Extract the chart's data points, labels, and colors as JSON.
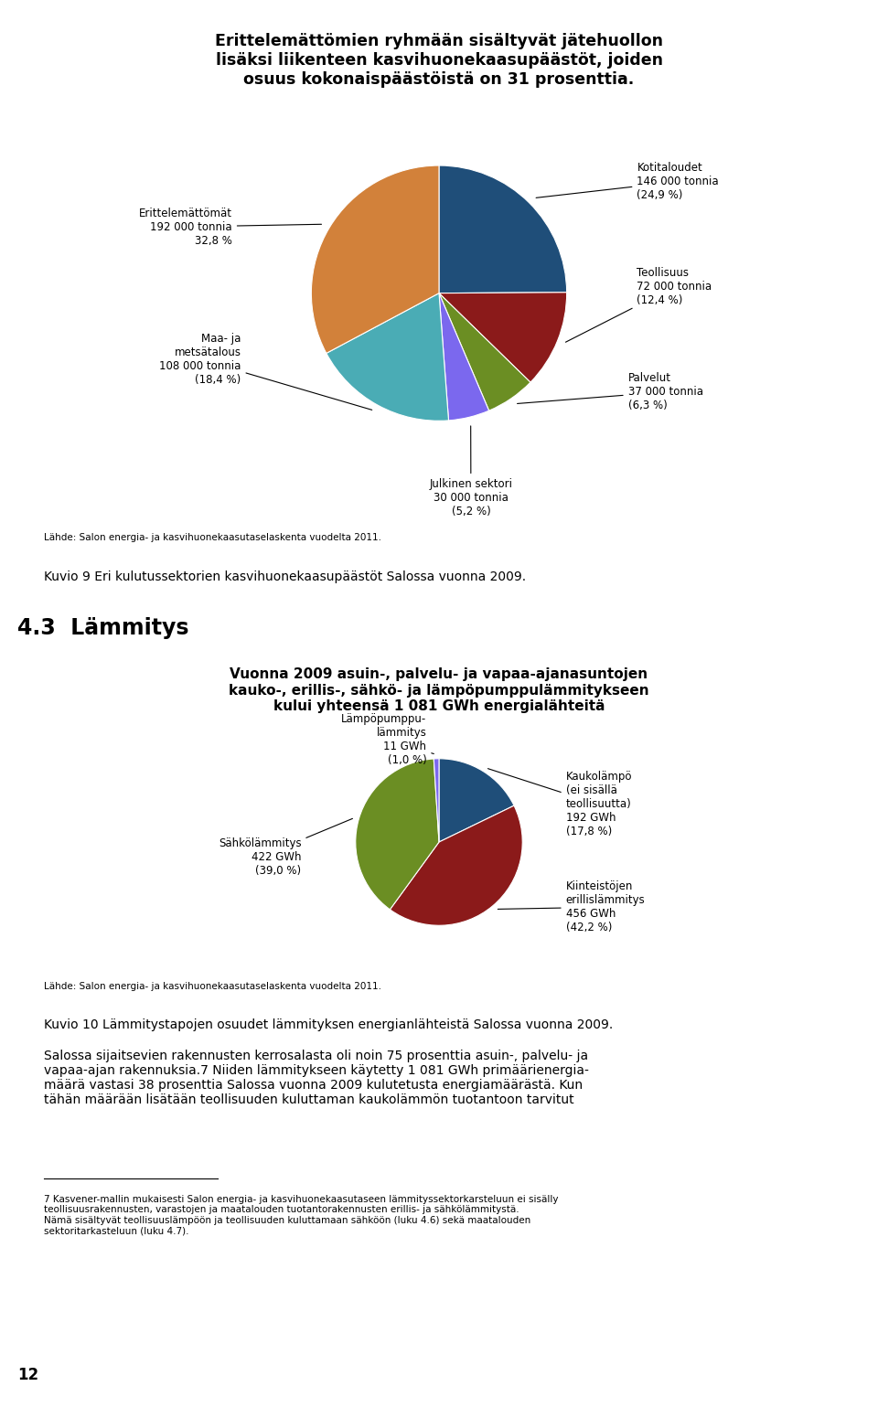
{
  "title1": "Erittelemättömien ryhmään sisältyvät jätehuollon\nlisäksi liikenteen kasvihuonekaasupäästöt, joiden\nosuus kokonaispäästöistä on 31 prosenttia.",
  "pie1_values": [
    24.9,
    12.4,
    6.3,
    5.2,
    18.4,
    32.8
  ],
  "pie1_colors": [
    "#1F4E79",
    "#8B1A1A",
    "#6B8E23",
    "#7B68EE",
    "#4AACB5",
    "#D2813A"
  ],
  "pie1_labels": [
    "Kotitaloudet\n146 000 tonnia\n(24,9 %)",
    "Teollisuus\n72 000 tonnia\n(12,4 %)",
    "Palvelut\n37 000 tonnia\n(6,3 %)",
    "Julkinen sektori\n30 000 tonnia\n(5,2 %)",
    "Maa- ja\nmetsätalous\n108 000 tonnia\n(18,4 %)",
    "Erittelemättömät\n192 000 tonnia\n32,8 %"
  ],
  "pie1_source": "Lähde: Salon energia- ja kasvihuonekaasutaselaskenta vuodelta 2011.",
  "pie1_caption": "Kuvio 9 Eri kulutussektorien kasvihuonekaasupäästöt Salossa vuonna 2009.",
  "section_title": "4.3  Lämmitys",
  "pie2_title": "Vuonna 2009 asuin-, palvelu- ja vapaa-ajanasuntojen\nkauko-, erillis-, sähkö- ja lämpöpumppulämmitykseen\nkului yhteensä 1 081 GWh energialähteitä",
  "pie2_values": [
    17.8,
    42.2,
    39.0,
    1.0
  ],
  "pie2_colors": [
    "#1F4E79",
    "#8B1A1A",
    "#6B8E23",
    "#7B68EE"
  ],
  "pie2_labels": [
    "Kaukolämpö\n(ei sisällä\nteollisuutta)\n192 GWh\n(17,8 %)",
    "Kiinteistöjen\nerillislämmitys\n456 GWh\n(42,2 %)",
    "Sähkölämmitys\n422 GWh\n(39,0 %)",
    "Lämpöpumppu-\nlämmitys\n11 GWh\n(1,0 %)"
  ],
  "pie2_source": "Lähde: Salon energia- ja kasvihuonekaasutaselaskenta vuodelta 2011.",
  "pie2_caption": "Kuvio 10 Lämmitystapojen osuudet lämmityksen energianlähteistä Salossa vuonna 2009.",
  "body_line1": "Salossa sijaitsevien rakennusten kerrosalasta oli noin 75 prosenttia asuin-, palvelu- ja",
  "body_line2": "vapaa-ajan rakennuksia.",
  "body_sup": "7",
  "body_line3": " Niiden lämmitykseen käytetty 1 081 GWh primäärienergia-",
  "body_line4": "määrä vastasi 38 prosenttia Salossa vuonna 2009 kulutetusta energiamäärästä. Kun",
  "body_line5": "tähän määrään lisätään teollisuuden kuluttaman kaukolämmön tuotantoon tarvitut",
  "footnote_line": "——————————————",
  "footnote": "7 Kasvener-mallin mukaisesti Salon energia- ja kasvihuonekaasutaseen lämmityssektorkarsteluun ei sisälly\nteollisuusrakennusten, varastojen ja maatalouden tuotantorakennusten erillis- ja sähkölämmitystä.\nNämä sisältyvät teollisuuslämpöön ja teollisuuden kuluttamaan sähköön (luku 4.6) sekä maatalouden\nsektoritarkasteluun (luku 4.7).",
  "page_number": "12"
}
